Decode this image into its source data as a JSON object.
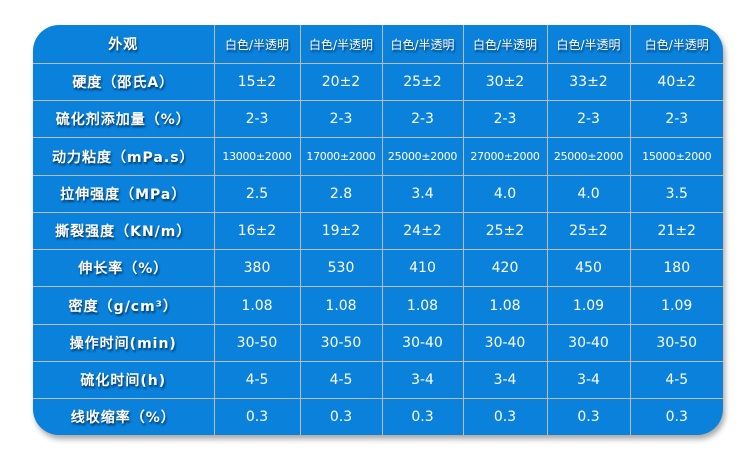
{
  "table": {
    "rows": [
      {
        "label": "外观",
        "values": [
          "白色/半透明",
          "白色/半透明",
          "白色/半透明",
          "白色/半透明",
          "白色/半透明",
          "白色/半透明"
        ]
      },
      {
        "label": "硬度（邵氏A）",
        "values": [
          "15±2",
          "20±2",
          "25±2",
          "30±2",
          "33±2",
          "40±2"
        ]
      },
      {
        "label": "硫化剂添加量（%）",
        "values": [
          "2-3",
          "2-3",
          "2-3",
          "2-3",
          "2-3",
          "2-3"
        ]
      },
      {
        "label": "动力粘度（mPa.s）",
        "values": [
          "13000±2000",
          "17000±2000",
          "25000±2000",
          "27000±2000",
          "25000±2000",
          "15000±2000"
        ]
      },
      {
        "label": "拉伸强度（MPa）",
        "values": [
          "2.5",
          "2.8",
          "3.4",
          "4.0",
          "4.0",
          "3.5"
        ]
      },
      {
        "label": "撕裂强度（KN/m）",
        "values": [
          "16±2",
          "19±2",
          "24±2",
          "25±2",
          "25±2",
          "21±2"
        ]
      },
      {
        "label": "伸长率（%）",
        "values": [
          "380",
          "530",
          "410",
          "420",
          "450",
          "180"
        ]
      },
      {
        "label": "密度（g/cm³）",
        "values": [
          "1.08",
          "1.08",
          "1.08",
          "1.08",
          "1.09",
          "1.09"
        ]
      },
      {
        "label": "操作时间(min)",
        "values": [
          "30-50",
          "30-50",
          "30-40",
          "30-40",
          "30-40",
          "30-50"
        ]
      },
      {
        "label": "硫化时间(h)",
        "values": [
          "4-5",
          "4-5",
          "3-4",
          "3-4",
          "3-4",
          "4-5"
        ]
      },
      {
        "label": "线收缩率（%）",
        "values": [
          "0.3",
          "0.3",
          "0.3",
          "0.3",
          "0.3",
          "0.3"
        ]
      }
    ]
  }
}
